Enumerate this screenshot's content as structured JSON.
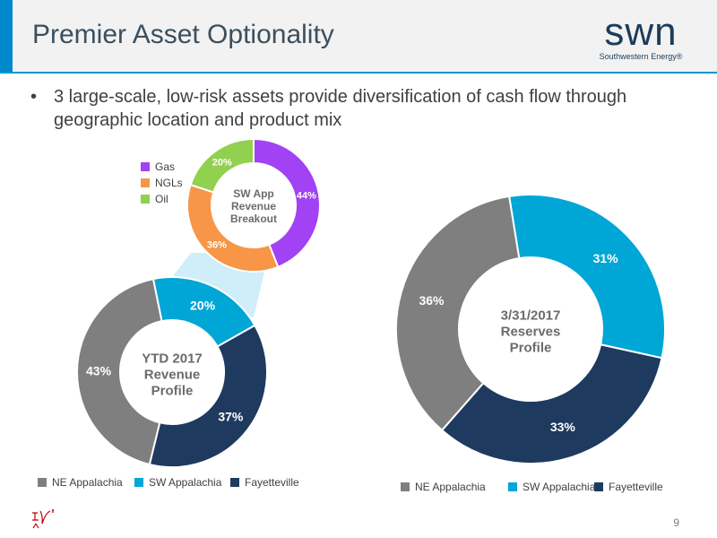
{
  "header": {
    "title": "Premier Asset Optionality",
    "logo_word": "swn",
    "logo_tagline": "Southwestern Energy®"
  },
  "bullet": {
    "dot": "•",
    "text": "3 large-scale, low-risk assets provide diversification of cash flow through geographic location and product mix"
  },
  "colors": {
    "ne_appalachia": "#7f7f7f",
    "sw_appalachia": "#00a6d6",
    "fayetteville": "#1f3a5f",
    "gas": "#a142f4",
    "ngls": "#f79646",
    "oil": "#92d050",
    "callout": "#cfeefa"
  },
  "chart_data": [
    {
      "type": "pie",
      "donut": true,
      "title": "SW App Revenue Breakout",
      "categories": [
        "Gas",
        "NGLs",
        "Oil"
      ],
      "values": [
        44,
        36,
        20
      ],
      "labels": [
        "44%",
        "36%",
        "20%"
      ],
      "legend": [
        "Gas",
        "NGLs",
        "Oil"
      ]
    },
    {
      "type": "pie",
      "donut": true,
      "title": "YTD 2017 Revenue Profile",
      "categories": [
        "SW Appalachia",
        "Fayetteville",
        "NE Appalachia"
      ],
      "values": [
        20,
        37,
        43
      ],
      "labels": [
        "20%",
        "37%",
        "43%"
      ],
      "legend": [
        "NE Appalachia",
        "SW Appalachia",
        "Fayetteville"
      ]
    },
    {
      "type": "pie",
      "donut": true,
      "title": "3/31/2017 Reserves Profile",
      "categories": [
        "SW Appalachia",
        "Fayetteville",
        "NE Appalachia"
      ],
      "values": [
        31,
        33,
        36
      ],
      "labels": [
        "31%",
        "33%",
        "36%"
      ],
      "legend": [
        "NE Appalachia",
        "SW Appalachia",
        "Fayetteville"
      ]
    }
  ],
  "footer": {
    "page_number": "9"
  }
}
